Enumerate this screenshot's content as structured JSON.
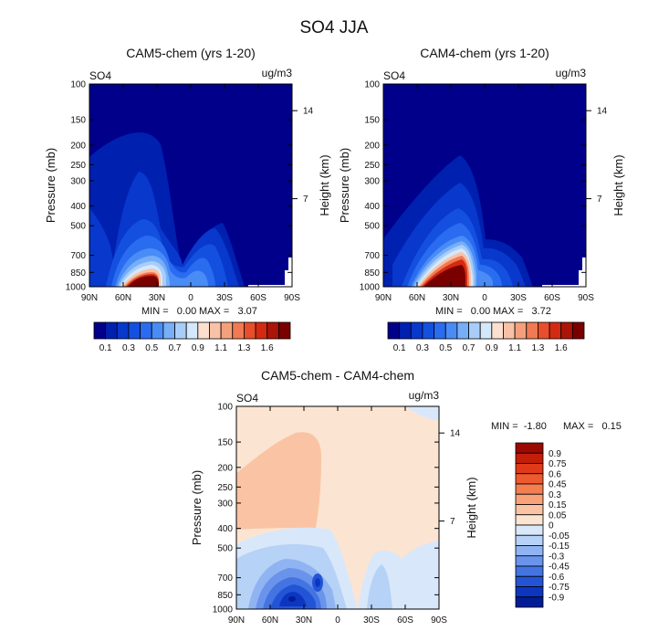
{
  "figure": {
    "title": "SO4 JJA"
  },
  "chart_data": [
    {
      "type": "heatmap",
      "title": "CAM5-chem (yrs 1-20)",
      "left_label": "SO4",
      "unit_label": "ug/m3",
      "ylabel": "Pressure (mb)",
      "y2label": "Height (km)",
      "x_ticks": [
        "90N",
        "60N",
        "30N",
        "0",
        "30S",
        "60S",
        "90S"
      ],
      "x_values": [
        90,
        60,
        30,
        0,
        -30,
        -60,
        -90
      ],
      "y_ticks": [
        "100",
        "150",
        "200",
        "250",
        "300",
        "400",
        "500",
        "700",
        "850",
        "1000"
      ],
      "y_values": [
        100,
        150,
        200,
        250,
        300,
        400,
        500,
        700,
        850,
        1000
      ],
      "y2_ticks": [
        "14",
        "7"
      ],
      "y2_values": [
        14,
        7
      ],
      "ylim": [
        1000,
        100
      ],
      "log_scale_y": true,
      "min_text": "MIN =   0.00",
      "max_text": "MAX =   3.07",
      "min": 0.0,
      "max": 3.07,
      "colorbar": {
        "labels": [
          "0.1",
          "0.3",
          "0.5",
          "0.7",
          "0.9",
          "1.1",
          "1.3",
          "1.6"
        ],
        "colors": [
          "#00008b",
          "#0020b0",
          "#0838cc",
          "#1450e0",
          "#2a6cf0",
          "#4a8cf6",
          "#76aef8",
          "#a8cdf8",
          "#d4e8fc",
          "#fbe0cf",
          "#f9c2a6",
          "#f5a07c",
          "#f07a54",
          "#e84e2c",
          "#d42a12",
          "#ac1408",
          "#7a0000"
        ],
        "orientation": "horizontal"
      }
    },
    {
      "type": "heatmap",
      "title": "CAM4-chem (yrs 1-20)",
      "left_label": "SO4",
      "unit_label": "ug/m3",
      "ylabel": "Pressure (mb)",
      "y2label": "Height (km)",
      "x_ticks": [
        "90N",
        "60N",
        "30N",
        "0",
        "30S",
        "60S",
        "90S"
      ],
      "x_values": [
        90,
        60,
        30,
        0,
        -30,
        -60,
        -90
      ],
      "y_ticks": [
        "100",
        "150",
        "200",
        "250",
        "300",
        "400",
        "500",
        "700",
        "850",
        "1000"
      ],
      "y_values": [
        100,
        150,
        200,
        250,
        300,
        400,
        500,
        700,
        850,
        1000
      ],
      "y2_ticks": [
        "14",
        "7"
      ],
      "y2_values": [
        14,
        7
      ],
      "ylim": [
        1000,
        100
      ],
      "log_scale_y": true,
      "min_text": "MIN =   0.00",
      "max_text": "MAX =   3.72",
      "min": 0.0,
      "max": 3.72,
      "colorbar": {
        "labels": [
          "0.1",
          "0.3",
          "0.5",
          "0.7",
          "0.9",
          "1.1",
          "1.3",
          "1.6"
        ],
        "colors": [
          "#00008b",
          "#0020b0",
          "#0838cc",
          "#1450e0",
          "#2a6cf0",
          "#4a8cf6",
          "#76aef8",
          "#a8cdf8",
          "#d4e8fc",
          "#fbe0cf",
          "#f9c2a6",
          "#f5a07c",
          "#f07a54",
          "#e84e2c",
          "#d42a12",
          "#ac1408",
          "#7a0000"
        ],
        "orientation": "horizontal"
      }
    },
    {
      "type": "heatmap",
      "title": "CAM5-chem - CAM4-chem",
      "left_label": "SO4",
      "unit_label": "ug/m3",
      "ylabel": "Pressure (mb)",
      "y2label": "Height (km)",
      "x_ticks": [
        "90N",
        "60N",
        "30N",
        "0",
        "30S",
        "60S",
        "90S"
      ],
      "x_values": [
        90,
        60,
        30,
        0,
        -30,
        -60,
        -90
      ],
      "y_ticks": [
        "100",
        "150",
        "200",
        "250",
        "300",
        "400",
        "500",
        "700",
        "850",
        "1000"
      ],
      "y_values": [
        100,
        150,
        200,
        250,
        300,
        400,
        500,
        700,
        850,
        1000
      ],
      "y2_ticks": [
        "14",
        "7"
      ],
      "y2_values": [
        14,
        7
      ],
      "ylim": [
        1000,
        100
      ],
      "log_scale_y": true,
      "min_text": "MIN =  -1.80",
      "max_text": "MAX =   0.15",
      "min": -1.8,
      "max": 0.15,
      "colorbar": {
        "labels": [
          "0.9",
          "0.75",
          "0.6",
          "0.45",
          "0.3",
          "0.15",
          "0.05",
          "0",
          "-0.05",
          "-0.15",
          "-0.3",
          "-0.45",
          "-0.6",
          "-0.75",
          "-0.9"
        ],
        "colors": [
          "#9a0a00",
          "#c41e08",
          "#e03a18",
          "#ee5a30",
          "#f47e50",
          "#f8a27a",
          "#fac4a4",
          "#fce4d2",
          "#d8e8fa",
          "#b6d2f6",
          "#90b4f2",
          "#6a94ec",
          "#4474e2",
          "#2454d6",
          "#0c36c0",
          "#001c96"
        ],
        "orientation": "vertical"
      }
    }
  ]
}
